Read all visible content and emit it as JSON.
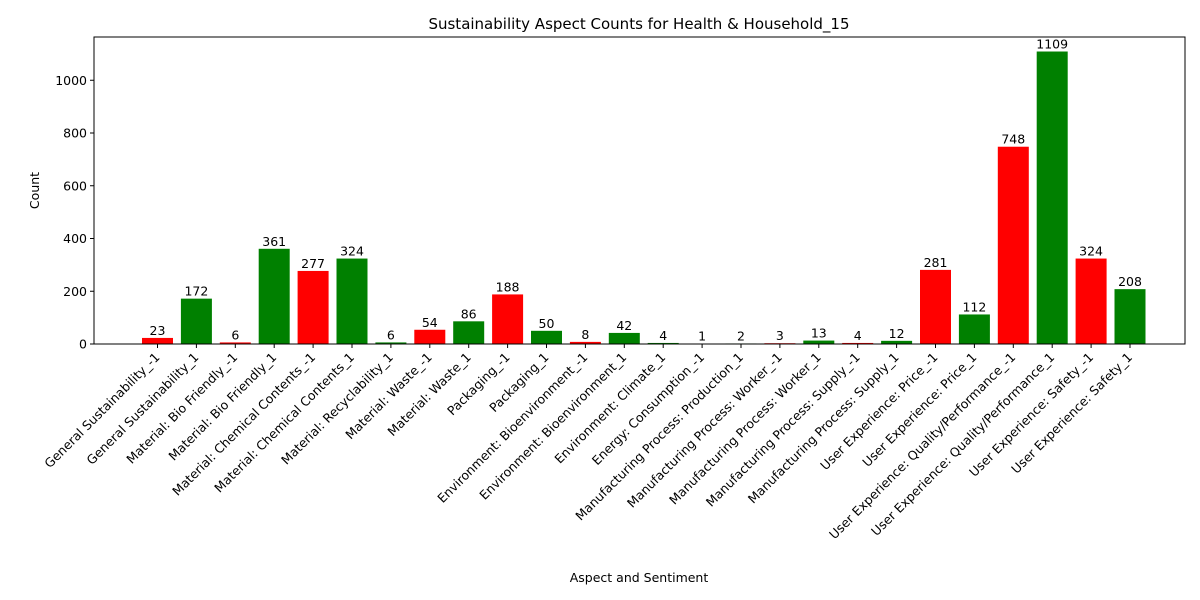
{
  "chart_data": {
    "type": "bar",
    "title": "Sustainability Aspect Counts for Health & Household_15",
    "xlabel": "Aspect and Sentiment",
    "ylabel": "Count",
    "ylim": [
      0,
      1164
    ],
    "yticks": [
      0,
      200,
      400,
      600,
      800,
      1000
    ],
    "grid": false,
    "legend": "none",
    "colors": {
      "negative": "#ff0000",
      "positive": "#008000"
    },
    "categories": [
      "General Sustainability_-1",
      "General Sustainability_1",
      "Material: Bio Friendly_-1",
      "Material: Bio Friendly_1",
      "Material: Chemical Contents_-1",
      "Material: Chemical Contents_1",
      "Material: Recyclability_1",
      "Material: Waste_-1",
      "Material: Waste_1",
      "Packaging_-1",
      "Packaging_1",
      "Environment: Bioenvironment_-1",
      "Environment: Bioenvironment_1",
      "Environment: Climate_1",
      "Energy: Consumption_-1",
      "Manufacturing Process: Production_1",
      "Manufacturing Process: Worker_-1",
      "Manufacturing Process: Worker_1",
      "Manufacturing Process: Supply_-1",
      "Manufacturing Process: Supply_1",
      "User Experience: Price_-1",
      "User Experience: Price_1",
      "User Experience: Quality/Performance_-1",
      "User Experience: Quality/Performance_1",
      "User Experience: Safety_-1",
      "User Experience: Safety_1"
    ],
    "values": [
      23,
      172,
      6,
      361,
      277,
      324,
      6,
      54,
      86,
      188,
      50,
      8,
      42,
      4,
      1,
      2,
      3,
      13,
      4,
      12,
      281,
      112,
      748,
      1109,
      324,
      208
    ],
    "bar_colors": [
      "#ff0000",
      "#008000",
      "#ff0000",
      "#008000",
      "#ff0000",
      "#008000",
      "#008000",
      "#ff0000",
      "#008000",
      "#ff0000",
      "#008000",
      "#ff0000",
      "#008000",
      "#008000",
      "#ff0000",
      "#008000",
      "#ff0000",
      "#008000",
      "#ff0000",
      "#008000",
      "#ff0000",
      "#008000",
      "#ff0000",
      "#008000",
      "#ff0000",
      "#008000"
    ]
  }
}
